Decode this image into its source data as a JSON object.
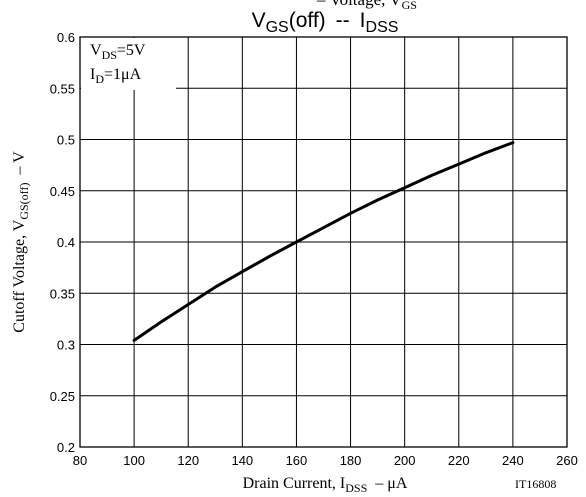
{
  "chart_data": {
    "type": "line",
    "title_main": "V",
    "title_sub": "GS",
    "title_paren": "(off)",
    "title_sep": "--",
    "title_i": "I",
    "title_i_sub": "DSS",
    "title_clipped": "– Voltage, V",
    "title_clipped_sub": "GS",
    "xlabel_pre": "Drain Current, I",
    "xlabel_sub": "DSS",
    "xlabel_post": "–  μA",
    "ylabel_pre": "Cutoff Voltage, V",
    "ylabel_sub": "GS(off)",
    "ylabel_post": "–  V",
    "code": "IT16808",
    "annotation": {
      "line1_main": "V",
      "line1_sub": "DS",
      "line1_val": "=5V",
      "line2_main": "I",
      "line2_sub": "D",
      "line2_val": "=1μA"
    },
    "xlim": [
      80,
      260
    ],
    "ylim": [
      0.2,
      0.6
    ],
    "x_ticks": [
      80,
      100,
      120,
      140,
      160,
      180,
      200,
      220,
      240,
      260
    ],
    "x_tick_labels": [
      "80",
      "100",
      "120",
      "140",
      "160",
      "180",
      "200",
      "220",
      "240",
      "260"
    ],
    "y_ticks": [
      0.2,
      0.25,
      0.3,
      0.35,
      0.4,
      0.45,
      0.5,
      0.55,
      0.6
    ],
    "y_tick_labels": [
      "0.2",
      "0.25",
      "0.3",
      "0.35",
      "0.4",
      "0.45",
      "0.5",
      "0.55",
      "0.6"
    ],
    "grid": true,
    "series": [
      {
        "x": [
          100,
          110,
          120,
          130,
          140,
          150,
          160,
          170,
          180,
          190,
          200,
          210,
          220,
          230,
          240
        ],
        "y": [
          0.304,
          0.322,
          0.339,
          0.356,
          0.371,
          0.386,
          0.4,
          0.414,
          0.428,
          0.441,
          0.453,
          0.465,
          0.476,
          0.487,
          0.497
        ]
      }
    ],
    "colors": {
      "line": "#000000",
      "grid": "#000000"
    }
  }
}
